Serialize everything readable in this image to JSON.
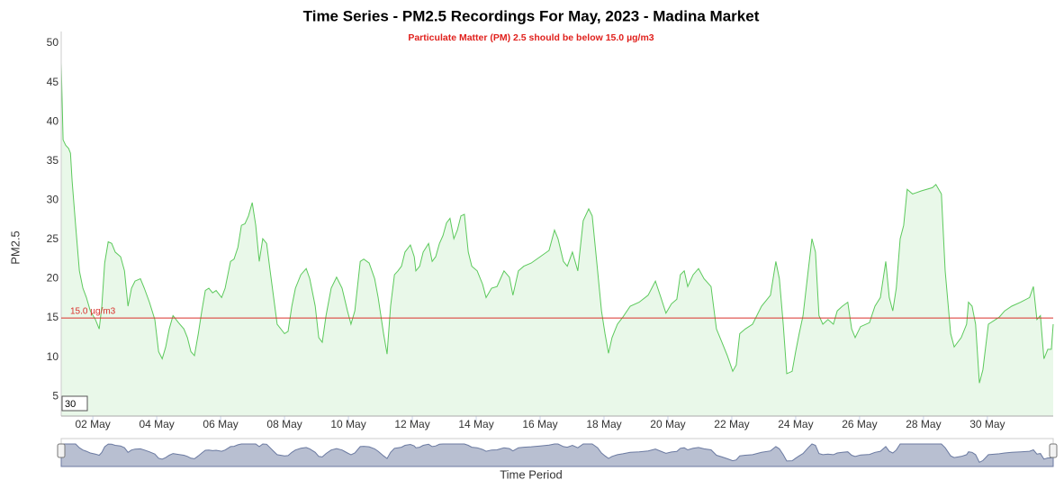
{
  "chart_data": {
    "type": "area",
    "title": "Time Series - PM2.5 Recordings For May, 2023 - Madina Market",
    "subtitle": "Particulate Matter (PM) 2.5 should be below 15.0 µg/m3",
    "y_label": "PM2.5",
    "x_label": "Time Period",
    "range_input": "30",
    "color": "#5cc95c",
    "fill_color": "#e9f8e9",
    "threshold": {
      "value": 15,
      "label": "15.0 µg/m3",
      "color": "#d9302c"
    },
    "x": [
      1.01,
      1.07,
      1.15,
      1.24,
      1.3,
      1.35,
      1.46,
      1.58,
      1.69,
      1.8,
      1.92,
      2.08,
      2.2,
      2.28,
      2.37,
      2.48,
      2.59,
      2.7,
      2.87,
      2.99,
      3.1,
      3.21,
      3.32,
      3.49,
      3.61,
      3.77,
      3.94,
      4.06,
      4.17,
      4.28,
      4.39,
      4.51,
      4.68,
      4.85,
      4.96,
      5.07,
      5.18,
      5.3,
      5.41,
      5.52,
      5.63,
      5.75,
      5.86,
      6.03,
      6.14,
      6.31,
      6.42,
      6.54,
      6.65,
      6.76,
      6.87,
      6.99,
      7.1,
      7.21,
      7.32,
      7.44,
      7.55,
      7.66,
      7.77,
      8.0,
      8.11,
      8.23,
      8.34,
      8.51,
      8.68,
      8.79,
      8.96,
      9.07,
      9.18,
      9.3,
      9.46,
      9.63,
      9.8,
      9.97,
      10.08,
      10.2,
      10.37,
      10.48,
      10.65,
      10.82,
      10.93,
      11.1,
      11.21,
      11.32,
      11.44,
      11.55,
      11.66,
      11.77,
      11.94,
      12.06,
      12.11,
      12.23,
      12.34,
      12.51,
      12.62,
      12.73,
      12.85,
      12.96,
      13.07,
      13.18,
      13.3,
      13.41,
      13.52,
      13.63,
      13.75,
      13.86,
      14.03,
      14.2,
      14.31,
      14.48,
      14.65,
      14.76,
      14.87,
      15.04,
      15.15,
      15.32,
      15.49,
      15.72,
      16.0,
      16.28,
      16.45,
      16.56,
      16.73,
      16.85,
      17.01,
      17.18,
      17.35,
      17.52,
      17.63,
      17.8,
      17.92,
      18.03,
      18.14,
      18.25,
      18.42,
      18.59,
      18.82,
      19.1,
      19.38,
      19.61,
      19.78,
      19.94,
      20.11,
      20.28,
      20.39,
      20.51,
      20.62,
      20.79,
      20.96,
      21.13,
      21.35,
      21.52,
      21.69,
      21.86,
      22.03,
      22.14,
      22.25,
      22.42,
      22.65,
      22.93,
      23.21,
      23.38,
      23.49,
      23.61,
      23.72,
      23.89,
      24.0,
      24.11,
      24.23,
      24.39,
      24.51,
      24.62,
      24.73,
      24.85,
      25.01,
      25.18,
      25.3,
      25.46,
      25.63,
      25.75,
      25.86,
      26.03,
      26.31,
      26.48,
      26.65,
      26.82,
      26.93,
      27.04,
      27.15,
      27.27,
      27.38,
      27.49,
      27.66,
      27.94,
      28.28,
      28.39,
      28.56,
      28.68,
      28.85,
      28.96,
      29.18,
      29.35,
      29.41,
      29.52,
      29.63,
      29.75,
      29.86,
      30.03,
      30.37,
      30.54,
      30.76,
      31.04,
      31.32,
      31.44,
      31.55,
      31.66,
      31.77,
      31.89,
      32.0,
      32.06
    ],
    "values": [
      47.5,
      37.7,
      37,
      36.6,
      36,
      32.5,
      26.8,
      21,
      18.8,
      17.6,
      15.9,
      14.8,
      13.6,
      16.5,
      22,
      24.7,
      24.5,
      23.4,
      22.8,
      21,
      16.5,
      18.8,
      19.7,
      20,
      18.8,
      17,
      14.8,
      10.7,
      9.8,
      11.3,
      13.6,
      15.3,
      14.4,
      13.6,
      12.5,
      10.7,
      10.2,
      13,
      15.9,
      18.5,
      18.8,
      18.2,
      18.5,
      17.6,
      18.8,
      22.2,
      22.5,
      24,
      26.8,
      27,
      28,
      29.7,
      26.8,
      22.2,
      25.1,
      24.5,
      21,
      17.6,
      14.2,
      13,
      13.3,
      16.5,
      18.8,
      20.5,
      21.3,
      20,
      16.5,
      12.5,
      11.9,
      15.3,
      18.8,
      20.2,
      18.8,
      15.9,
      14.2,
      15.9,
      22.2,
      22.5,
      22,
      20,
      17.6,
      13,
      10.4,
      16.5,
      20.5,
      21,
      21.6,
      23.4,
      24.3,
      22.8,
      21,
      21.6,
      23.4,
      24.5,
      22.2,
      22.8,
      24.5,
      25.5,
      27.1,
      27.7,
      25.1,
      26.2,
      28,
      28.2,
      23.4,
      21.6,
      21,
      19.3,
      17.6,
      18.8,
      19,
      20,
      21,
      20.2,
      17.9,
      21,
      21.6,
      22,
      22.8,
      23.6,
      26.2,
      25.1,
      22.2,
      21.6,
      23.4,
      21,
      27.4,
      28.9,
      28,
      21,
      15.9,
      13,
      10.5,
      12.5,
      14.2,
      15.1,
      16.5,
      17,
      17.9,
      19.7,
      17.6,
      15.6,
      16.8,
      17.4,
      20.5,
      21,
      19,
      20.5,
      21.3,
      20,
      19,
      13.6,
      11.9,
      10.2,
      8.2,
      9,
      13,
      13.6,
      14.2,
      16.5,
      17.9,
      22.2,
      20,
      14.2,
      7.9,
      8.2,
      10.7,
      13,
      15.3,
      21,
      25.1,
      23.4,
      15.3,
      14.2,
      14.8,
      14.2,
      15.9,
      16.5,
      17,
      13.6,
      12.5,
      13.9,
      14.4,
      16.5,
      17.6,
      22.2,
      17.6,
      15.9,
      18.8,
      25.1,
      26.8,
      31.4,
      30.8,
      31.2,
      31.6,
      32,
      30.8,
      21,
      13,
      11.3,
      12.5,
      14.2,
      17,
      16.5,
      14.2,
      6.7,
      8.4,
      14.2,
      15.1,
      15.9,
      16.5,
      17,
      17.6,
      19,
      14.8,
      15.3,
      9.8,
      11,
      11,
      14.2
    ],
    "xlim": [
      1.01,
      32.06
    ],
    "ylim": [
      2.5,
      51.5
    ],
    "xticks": [
      {
        "value": 2,
        "label": "02 May"
      },
      {
        "value": 4,
        "label": "04 May"
      },
      {
        "value": 6,
        "label": "06 May"
      },
      {
        "value": 8,
        "label": "08 May"
      },
      {
        "value": 10,
        "label": "10 May"
      },
      {
        "value": 12,
        "label": "12 May"
      },
      {
        "value": 14,
        "label": "14 May"
      },
      {
        "value": 16,
        "label": "16 May"
      },
      {
        "value": 18,
        "label": "18 May"
      },
      {
        "value": 20,
        "label": "20 May"
      },
      {
        "value": 22,
        "label": "22 May"
      },
      {
        "value": 24,
        "label": "24 May"
      },
      {
        "value": 26,
        "label": "26 May"
      },
      {
        "value": 28,
        "label": "28 May"
      },
      {
        "value": 30,
        "label": "30 May"
      }
    ],
    "yticks": [
      5,
      10,
      15,
      20,
      25,
      30,
      35,
      40,
      45,
      50
    ],
    "grid": false
  }
}
